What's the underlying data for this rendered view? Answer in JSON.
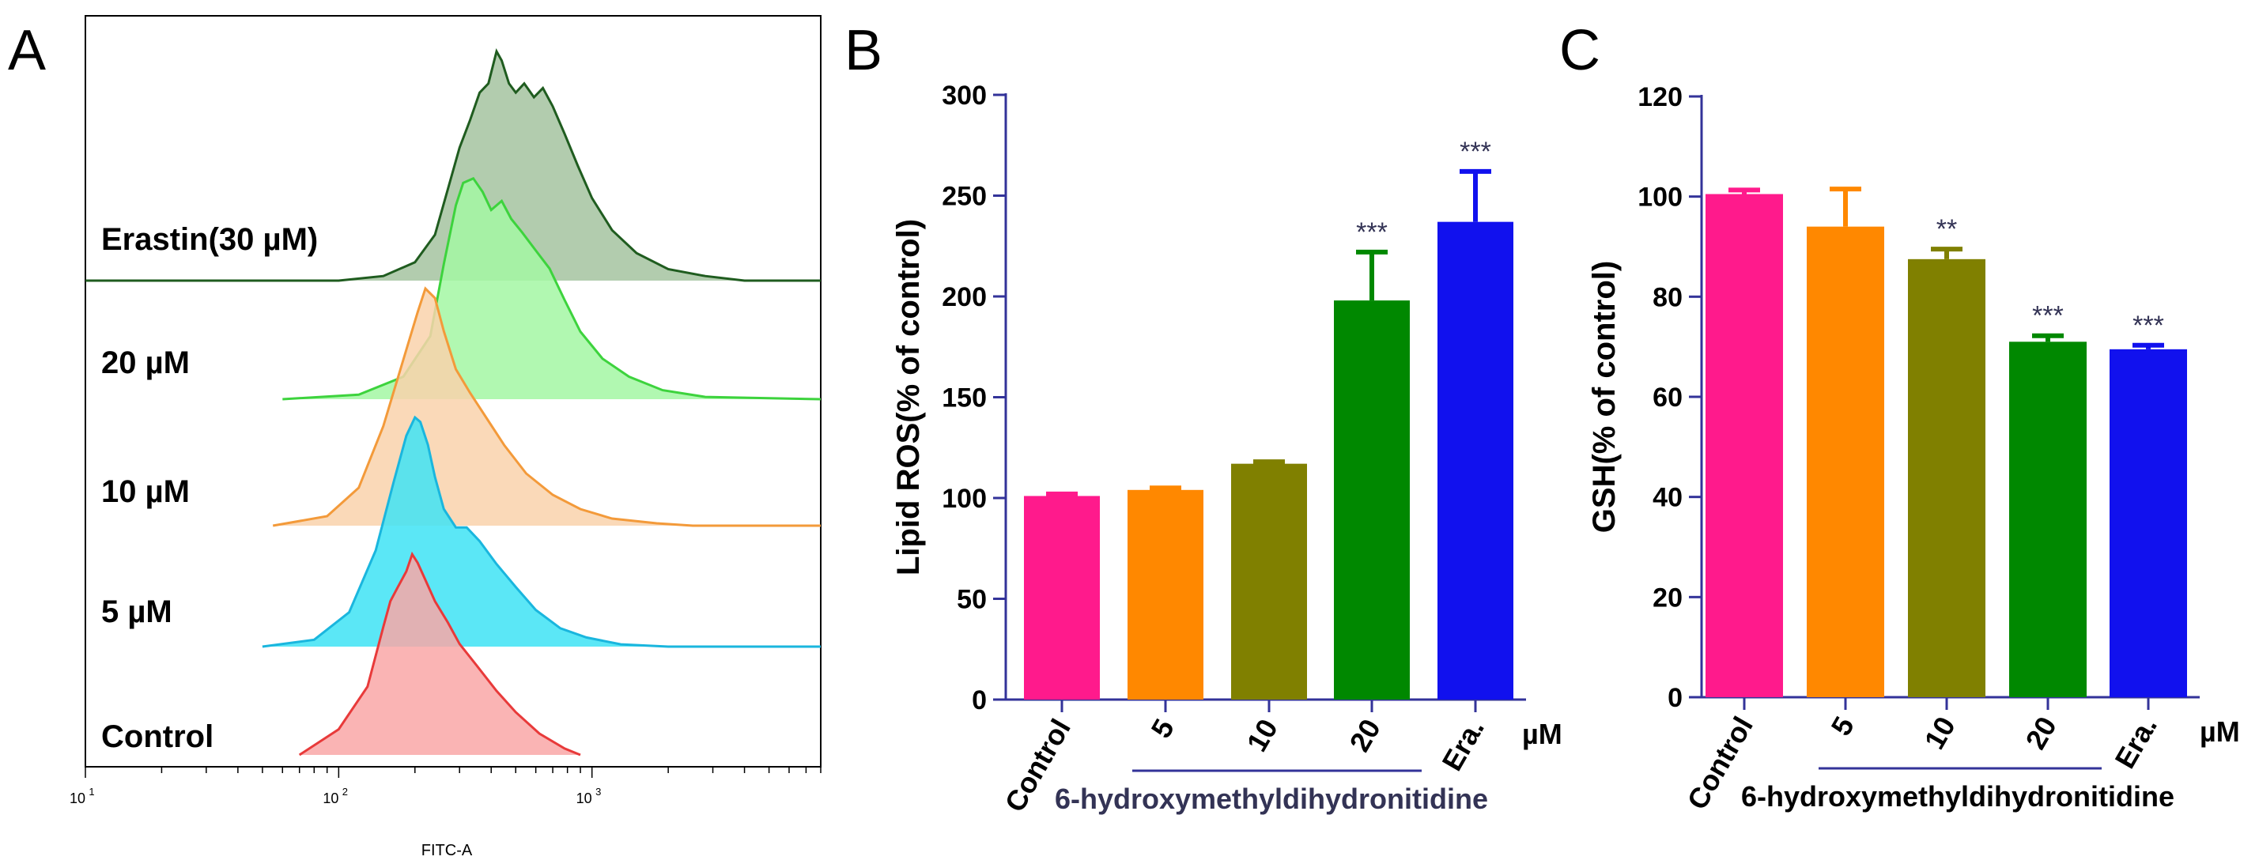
{
  "chart_data": [
    {
      "panel": "A",
      "type": "area",
      "xlabel": "FITC-A",
      "xscale": "log",
      "xlim": [
        10,
        8000
      ],
      "xticks": [
        {
          "base": "10",
          "exp": "1"
        },
        {
          "base": "10",
          "exp": "2"
        },
        {
          "base": "10",
          "exp": "3"
        }
      ],
      "series": [
        {
          "name": "Control",
          "fill": "#f9a7a7",
          "stroke": "#e83a3a",
          "x": [
            70,
            100,
            130,
            150,
            160,
            170,
            185,
            195,
            205,
            220,
            240,
            270,
            300,
            350,
            420,
            500,
            620,
            780,
            900
          ],
          "y": [
            0.0,
            0.12,
            0.32,
            0.6,
            0.72,
            0.78,
            0.86,
            0.94,
            0.9,
            0.82,
            0.72,
            0.62,
            0.52,
            0.42,
            0.3,
            0.2,
            0.1,
            0.03,
            0.0
          ]
        },
        {
          "name": "5 µM",
          "fill": "#3ee3f5",
          "stroke": "#1ab6de",
          "x": [
            50,
            80,
            110,
            140,
            165,
            185,
            200,
            210,
            225,
            240,
            260,
            290,
            320,
            360,
            420,
            500,
            600,
            750,
            950,
            1300,
            2000,
            8000
          ],
          "y": [
            0.0,
            0.03,
            0.15,
            0.42,
            0.72,
            0.92,
            1.0,
            0.98,
            0.88,
            0.74,
            0.6,
            0.52,
            0.52,
            0.46,
            0.36,
            0.26,
            0.16,
            0.08,
            0.04,
            0.01,
            0.0,
            0.0
          ]
        },
        {
          "name": "10 µM",
          "fill": "#f9d2ac",
          "stroke": "#f39a3a",
          "x": [
            55,
            90,
            120,
            150,
            180,
            205,
            220,
            240,
            260,
            290,
            330,
            380,
            450,
            550,
            700,
            900,
            1200,
            1800,
            2500,
            8000
          ],
          "y": [
            0.0,
            0.04,
            0.16,
            0.42,
            0.7,
            0.9,
            1.0,
            0.96,
            0.82,
            0.66,
            0.56,
            0.46,
            0.34,
            0.22,
            0.13,
            0.07,
            0.03,
            0.01,
            0.0,
            0.0
          ]
        },
        {
          "name": "20 µM",
          "fill": "#a3f7a3",
          "stroke": "#3dd33d",
          "x": [
            60,
            120,
            180,
            230,
            260,
            290,
            310,
            340,
            370,
            400,
            440,
            480,
            530,
            600,
            680,
            780,
            900,
            1100,
            1400,
            1900,
            2800,
            8000
          ],
          "y": [
            0.0,
            0.02,
            0.1,
            0.28,
            0.6,
            0.86,
            0.96,
            0.98,
            0.92,
            0.84,
            0.88,
            0.8,
            0.74,
            0.66,
            0.58,
            0.44,
            0.3,
            0.18,
            0.1,
            0.04,
            0.01,
            0.0
          ]
        },
        {
          "name": "Erastin(30 µM)",
          "fill": "#a4c3a0",
          "stroke": "#1f5c1f",
          "x": [
            10,
            100,
            150,
            200,
            240,
            270,
            300,
            330,
            360,
            390,
            420,
            440,
            470,
            500,
            540,
            590,
            640,
            700,
            780,
            880,
            1000,
            1200,
            1500,
            2000,
            2800,
            4000,
            8000
          ],
          "y": [
            0.0,
            0.0,
            0.02,
            0.08,
            0.2,
            0.4,
            0.58,
            0.7,
            0.82,
            0.86,
            1.0,
            0.96,
            0.86,
            0.82,
            0.86,
            0.8,
            0.84,
            0.76,
            0.64,
            0.5,
            0.36,
            0.22,
            0.12,
            0.05,
            0.02,
            0.0,
            0.0
          ]
        }
      ]
    },
    {
      "panel": "B",
      "type": "bar",
      "ylabel": "Lipid ROS(% of control)",
      "ylim": [
        0,
        300
      ],
      "yticks": [
        0,
        50,
        100,
        150,
        200,
        250,
        300
      ],
      "categories": [
        "Control",
        "5",
        "10",
        "20",
        "Era."
      ],
      "values": [
        101,
        104,
        117,
        198,
        237
      ],
      "errors": [
        1,
        1,
        1,
        24,
        25
      ],
      "colors": [
        "#ff1a8c",
        "#ff8800",
        "#808000",
        "#008800",
        "#1111ee"
      ],
      "significance": [
        "",
        "",
        "",
        "***",
        "***"
      ],
      "unit": "µM",
      "group_label": "6-hydroxymethyldihydronitidine"
    },
    {
      "panel": "C",
      "type": "bar",
      "ylabel": "GSH(% of control)",
      "ylim": [
        0,
        120
      ],
      "yticks": [
        0,
        20,
        40,
        60,
        80,
        100,
        120
      ],
      "categories": [
        "Control",
        "5",
        "10",
        "20",
        "Era."
      ],
      "values": [
        100.5,
        94,
        87.5,
        71,
        69.5
      ],
      "errors": [
        0.8,
        7.5,
        2.0,
        1.2,
        0.8
      ],
      "colors": [
        "#ff1a8c",
        "#ff8800",
        "#808000",
        "#008800",
        "#1111ee"
      ],
      "significance": [
        "",
        "",
        "**",
        "***",
        "***"
      ],
      "unit": "µM",
      "group_label": "6-hydroxymethyldihydronitidine"
    }
  ],
  "panel_letters": [
    "A",
    "B",
    "C"
  ]
}
